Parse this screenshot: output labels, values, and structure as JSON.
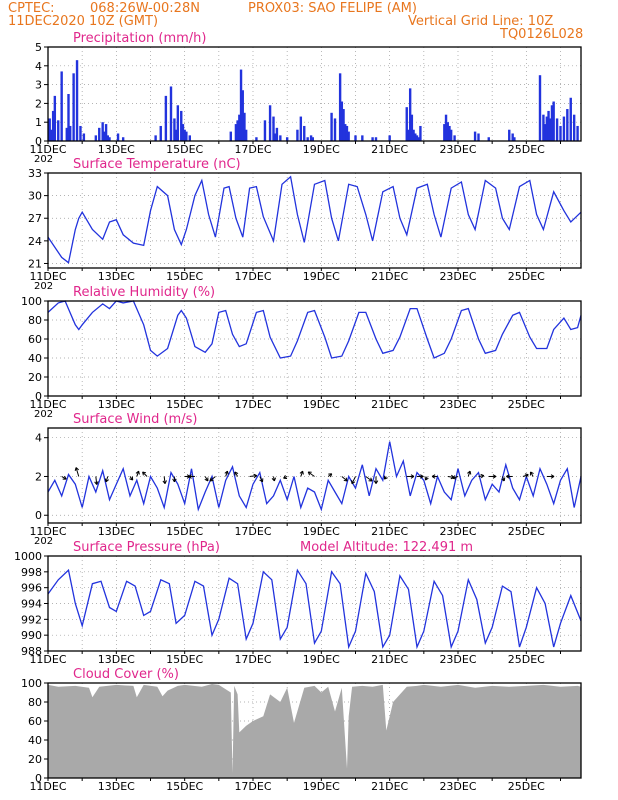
{
  "header": {
    "source": "CPTEC:",
    "coords": "068:26W-00:28N",
    "station": "PROX03: SAO FELIPE (AM)",
    "datetime": "11DEC2020 10Z (GMT)",
    "grid_note": "Vertical Grid Line: 10Z",
    "code": "TQ0126L028"
  },
  "colors": {
    "header": "#e8761e",
    "title": "#e0278c",
    "series": "#2233dd",
    "cloud": "#a9a9a9",
    "grid": "#9a9a9a"
  },
  "x_axis": {
    "range_days": [
      0,
      15.6
    ],
    "tick_labels": [
      {
        "day": 0,
        "label": "11DEC"
      },
      {
        "day": 2,
        "label": "13DEC"
      },
      {
        "day": 4,
        "label": "15DEC"
      },
      {
        "day": 6,
        "label": "17DEC"
      },
      {
        "day": 8,
        "label": "19DEC"
      },
      {
        "day": 10,
        "label": "21DEC"
      },
      {
        "day": 12,
        "label": "23DEC"
      },
      {
        "day": 14,
        "label": "25DEC"
      }
    ],
    "year_stub": "202"
  },
  "chart_data": [
    {
      "id": "precip",
      "type": "bar",
      "title": "Precipitation (mm/h)",
      "ylim": [
        0,
        5
      ],
      "yticks": [
        "0",
        "1",
        "2",
        "3",
        "4",
        "5"
      ],
      "year_stub": "202",
      "x": [
        0.05,
        0.1,
        0.15,
        0.2,
        0.3,
        0.4,
        0.55,
        0.6,
        0.65,
        0.75,
        0.85,
        0.95,
        1.05,
        1.4,
        1.5,
        1.6,
        1.65,
        1.7,
        1.75,
        1.8,
        2.05,
        2.2,
        3.15,
        3.3,
        3.45,
        3.6,
        3.7,
        3.75,
        3.8,
        3.9,
        3.95,
        4.0,
        4.05,
        4.15,
        5.35,
        5.5,
        5.55,
        5.6,
        5.65,
        5.7,
        5.75,
        5.8,
        6.1,
        6.35,
        6.5,
        6.6,
        6.65,
        6.7,
        6.8,
        7.0,
        7.3,
        7.4,
        7.5,
        7.6,
        7.7,
        7.75,
        8.3,
        8.4,
        8.55,
        8.6,
        8.65,
        8.7,
        8.75,
        8.8,
        9.0,
        9.2,
        9.5,
        9.6,
        10.0,
        10.5,
        10.55,
        10.6,
        10.65,
        10.7,
        10.75,
        10.8,
        10.85,
        10.9,
        11.6,
        11.65,
        11.7,
        11.75,
        11.8,
        11.9,
        12.5,
        12.6,
        12.9,
        13.5,
        13.6,
        13.65,
        14.4,
        14.5,
        14.55,
        14.6,
        14.65,
        14.7,
        14.75,
        14.8,
        14.9,
        15.0,
        15.1,
        15.2,
        15.3,
        15.4,
        15.5
      ],
      "values": [
        1.2,
        0.6,
        1.6,
        2.4,
        1.1,
        3.7,
        0.7,
        2.5,
        0.8,
        3.6,
        4.3,
        0.8,
        0.4,
        0.3,
        0.7,
        1.0,
        0.5,
        0.9,
        0.3,
        0.2,
        0.4,
        0.2,
        0.3,
        0.8,
        2.4,
        2.9,
        1.2,
        0.6,
        1.9,
        1.6,
        0.9,
        0.6,
        0.5,
        0.3,
        0.5,
        0.9,
        1.1,
        1.4,
        3.8,
        2.7,
        1.5,
        0.6,
        0.2,
        1.1,
        1.9,
        1.3,
        0.4,
        0.7,
        0.3,
        0.2,
        0.6,
        1.3,
        0.8,
        0.2,
        0.3,
        0.2,
        1.5,
        1.2,
        3.6,
        2.1,
        1.7,
        0.9,
        0.8,
        0.5,
        0.3,
        0.3,
        0.2,
        0.2,
        0.3,
        1.8,
        0.6,
        2.8,
        1.4,
        0.6,
        0.4,
        0.3,
        0.2,
        0.8,
        0.9,
        1.4,
        1.0,
        0.8,
        0.6,
        0.3,
        0.5,
        0.4,
        0.2,
        0.6,
        0.4,
        0.2,
        3.5,
        1.4,
        0.9,
        1.3,
        1.6,
        1.2,
        1.9,
        2.1,
        1.2,
        0.8,
        1.3,
        1.7,
        2.3,
        1.4,
        0.8
      ]
    },
    {
      "id": "temp",
      "type": "line",
      "title": "Surface Temperature (nC)",
      "ylim": [
        20.4,
        33
      ],
      "yticks": [
        "21",
        "24",
        "27",
        "30",
        "33"
      ],
      "year_stub": "202",
      "x": [
        0,
        0.4,
        0.6,
        0.8,
        0.9,
        1.0,
        1.3,
        1.6,
        1.8,
        2.0,
        2.2,
        2.5,
        2.8,
        3.0,
        3.2,
        3.5,
        3.7,
        3.9,
        4.05,
        4.3,
        4.5,
        4.7,
        4.9,
        5.15,
        5.3,
        5.5,
        5.7,
        5.9,
        6.1,
        6.3,
        6.6,
        6.85,
        7.1,
        7.3,
        7.5,
        7.8,
        8.1,
        8.3,
        8.5,
        8.8,
        9.05,
        9.3,
        9.5,
        9.8,
        10.1,
        10.3,
        10.5,
        10.8,
        11.1,
        11.3,
        11.5,
        11.8,
        12.1,
        12.3,
        12.5,
        12.8,
        13.1,
        13.3,
        13.5,
        13.8,
        14.1,
        14.3,
        14.5,
        14.8,
        15.1,
        15.3,
        15.6
      ],
      "values": [
        24.5,
        21.8,
        21.1,
        25.5,
        27.0,
        27.8,
        25.5,
        24.2,
        26.5,
        26.8,
        24.8,
        23.7,
        23.4,
        28.0,
        31.2,
        30.0,
        25.5,
        23.5,
        25.5,
        30.0,
        32.0,
        27.5,
        24.5,
        31.0,
        31.2,
        27.0,
        24.5,
        31.0,
        31.2,
        27.2,
        24.0,
        31.5,
        32.5,
        27.5,
        23.8,
        31.5,
        32.0,
        27.0,
        24.0,
        31.5,
        31.2,
        27.5,
        24.0,
        30.5,
        31.2,
        27.0,
        24.8,
        31.0,
        31.5,
        27.5,
        24.5,
        31.0,
        31.8,
        27.5,
        25.5,
        32.0,
        31.0,
        27.0,
        25.5,
        31.2,
        32.0,
        27.5,
        25.5,
        30.5,
        28.0,
        26.5,
        27.8
      ]
    },
    {
      "id": "rh",
      "type": "line",
      "title": "Relative Humidity (%)",
      "ylim": [
        0,
        100
      ],
      "yticks": [
        "0",
        "20",
        "40",
        "60",
        "80",
        "100"
      ],
      "year_stub": "202",
      "x": [
        0,
        0.3,
        0.5,
        0.8,
        0.9,
        1.0,
        1.3,
        1.6,
        1.8,
        2.0,
        2.2,
        2.5,
        2.8,
        3.0,
        3.2,
        3.5,
        3.8,
        3.9,
        4.05,
        4.3,
        4.6,
        4.8,
        5.0,
        5.2,
        5.4,
        5.6,
        5.8,
        6.1,
        6.3,
        6.5,
        6.8,
        7.1,
        7.3,
        7.6,
        7.8,
        8.1,
        8.3,
        8.6,
        8.8,
        9.1,
        9.3,
        9.6,
        9.8,
        10.1,
        10.3,
        10.6,
        10.8,
        11.1,
        11.3,
        11.6,
        11.8,
        12.1,
        12.3,
        12.6,
        12.8,
        13.1,
        13.3,
        13.6,
        13.8,
        14.1,
        14.3,
        14.6,
        14.8,
        15.1,
        15.3,
        15.5,
        15.6
      ],
      "values": [
        88,
        98,
        100,
        75,
        70,
        75,
        88,
        97,
        92,
        100,
        98,
        100,
        75,
        48,
        42,
        50,
        85,
        90,
        82,
        52,
        46,
        55,
        88,
        90,
        65,
        52,
        55,
        88,
        90,
        62,
        40,
        42,
        58,
        88,
        90,
        62,
        40,
        42,
        58,
        88,
        88,
        60,
        45,
        48,
        62,
        92,
        92,
        60,
        40,
        45,
        60,
        90,
        92,
        60,
        45,
        48,
        65,
        85,
        88,
        62,
        50,
        50,
        70,
        82,
        70,
        72,
        85
      ]
    },
    {
      "id": "wind",
      "type": "line",
      "title": "Surface Wind (m/s)",
      "ylim": [
        -0.4,
        4.5
      ],
      "yticks": [
        "0",
        "2",
        "4"
      ],
      "year_stub": "202",
      "x": [
        0,
        0.2,
        0.4,
        0.6,
        0.8,
        1.0,
        1.2,
        1.4,
        1.6,
        1.8,
        2.0,
        2.2,
        2.4,
        2.6,
        2.8,
        3.0,
        3.2,
        3.4,
        3.6,
        3.8,
        4.0,
        4.2,
        4.4,
        4.6,
        4.8,
        5.0,
        5.2,
        5.4,
        5.6,
        5.8,
        6.0,
        6.2,
        6.4,
        6.6,
        6.8,
        7.0,
        7.2,
        7.4,
        7.6,
        7.8,
        8.0,
        8.2,
        8.4,
        8.6,
        8.8,
        9.0,
        9.2,
        9.4,
        9.6,
        9.8,
        10.0,
        10.2,
        10.4,
        10.6,
        10.8,
        11.0,
        11.2,
        11.4,
        11.6,
        11.8,
        12.0,
        12.2,
        12.4,
        12.6,
        12.8,
        13.0,
        13.2,
        13.4,
        13.6,
        13.8,
        14.0,
        14.2,
        14.4,
        14.6,
        14.8,
        15.0,
        15.2,
        15.4,
        15.6
      ],
      "values": [
        1.2,
        1.8,
        1.0,
        2.1,
        1.6,
        0.4,
        2.0,
        1.2,
        2.3,
        0.8,
        1.6,
        2.4,
        1.0,
        1.8,
        0.6,
        2.0,
        1.4,
        0.4,
        2.2,
        1.6,
        0.6,
        2.4,
        0.3,
        1.2,
        2.0,
        0.4,
        1.8,
        2.5,
        1.0,
        0.4,
        1.6,
        2.2,
        0.6,
        1.0,
        1.8,
        0.8,
        2.0,
        0.4,
        1.4,
        1.2,
        0.3,
        1.8,
        1.2,
        0.6,
        2.0,
        1.4,
        2.6,
        1.0,
        2.4,
        1.8,
        3.8,
        2.0,
        2.8,
        1.0,
        2.2,
        1.8,
        0.6,
        2.0,
        1.2,
        0.8,
        2.4,
        1.0,
        1.8,
        2.2,
        0.8,
        1.6,
        1.2,
        2.6,
        1.4,
        0.8,
        2.0,
        1.0,
        2.4,
        1.6,
        0.6,
        1.8,
        2.4,
        0.4,
        2.0
      ]
    },
    {
      "id": "pres",
      "type": "line",
      "title": "Surface Pressure (hPa)",
      "annotation": "Model Altitude: 122.491 m",
      "ylim": [
        988,
        1000
      ],
      "yticks": [
        "988",
        "990",
        "992",
        "994",
        "996",
        "998",
        "1000"
      ],
      "year_stub": "",
      "x": [
        0,
        0.3,
        0.6,
        0.8,
        1.0,
        1.3,
        1.55,
        1.8,
        2.0,
        2.3,
        2.55,
        2.8,
        3.0,
        3.3,
        3.55,
        3.75,
        4.0,
        4.3,
        4.55,
        4.8,
        5.0,
        5.3,
        5.55,
        5.8,
        6.0,
        6.3,
        6.55,
        6.8,
        7.0,
        7.3,
        7.55,
        7.8,
        8.0,
        8.3,
        8.55,
        8.8,
        9.0,
        9.3,
        9.55,
        9.8,
        10.0,
        10.3,
        10.55,
        10.8,
        11.0,
        11.3,
        11.55,
        11.8,
        12.0,
        12.3,
        12.55,
        12.8,
        13.0,
        13.3,
        13.55,
        13.8,
        14.0,
        14.3,
        14.55,
        14.8,
        15.0,
        15.3,
        15.6
      ],
      "values": [
        995.2,
        997.0,
        998.2,
        994.0,
        991.2,
        996.5,
        996.8,
        993.5,
        993.0,
        996.8,
        996.2,
        992.5,
        993.0,
        997.0,
        996.5,
        991.5,
        992.5,
        996.8,
        996.2,
        990.0,
        992.0,
        997.2,
        996.5,
        989.5,
        991.5,
        998.0,
        997.0,
        989.5,
        991.0,
        998.2,
        996.5,
        989.0,
        990.5,
        998.0,
        996.5,
        988.5,
        990.5,
        997.8,
        995.5,
        988.5,
        990.0,
        997.5,
        995.8,
        988.5,
        990.5,
        996.8,
        995.0,
        988.5,
        990.5,
        997.0,
        994.5,
        989.0,
        991.0,
        996.2,
        995.5,
        988.5,
        991.0,
        996.0,
        994.0,
        988.5,
        991.5,
        995.0,
        991.8
      ]
    },
    {
      "id": "cloud",
      "type": "area",
      "title": "Cloud Cover (%)",
      "ylim": [
        0,
        100
      ],
      "yticks": [
        "0",
        "20",
        "40",
        "60",
        "80",
        "100"
      ],
      "year_stub": "",
      "x": [
        0,
        0.3,
        0.8,
        1.2,
        1.3,
        1.5,
        2.0,
        2.5,
        2.6,
        2.8,
        3.2,
        3.35,
        3.5,
        3.8,
        4.0,
        4.5,
        4.8,
        5.0,
        5.35,
        5.4,
        5.45,
        5.55,
        5.6,
        5.8,
        6.0,
        6.3,
        6.5,
        6.8,
        7.0,
        7.2,
        7.5,
        7.8,
        8.0,
        8.2,
        8.4,
        8.6,
        8.75,
        8.8,
        8.9,
        9.2,
        9.5,
        9.8,
        9.9,
        10.1,
        10.5,
        10.8,
        11.0,
        11.5,
        12.0,
        12.5,
        13.0,
        13.5,
        14.0,
        14.5,
        15.0,
        15.5,
        15.6
      ],
      "values": [
        98,
        96,
        97,
        95,
        85,
        96,
        98,
        97,
        85,
        98,
        96,
        86,
        92,
        97,
        98,
        96,
        99,
        98,
        90,
        5,
        97,
        88,
        48,
        55,
        60,
        65,
        88,
        80,
        95,
        58,
        95,
        97,
        90,
        96,
        70,
        95,
        10,
        65,
        96,
        97,
        96,
        98,
        50,
        80,
        96,
        97,
        98,
        96,
        98,
        95,
        97,
        96,
        97,
        98,
        96,
        97,
        96
      ]
    }
  ],
  "wind_vectors": {
    "x": [
      0.4,
      0.9,
      1.4,
      1.75,
      2.4,
      2.6,
      2.9,
      3.4,
      3.7,
      4.0,
      4.3,
      4.6,
      4.9,
      5.2,
      5.55,
      5.9,
      6.2,
      6.6,
      7.0,
      7.4,
      7.8,
      8.2,
      8.6,
      9.0,
      9.3,
      9.6,
      9.9,
      10.5,
      10.8,
      11.1,
      11.4,
      11.7,
      12.0,
      12.3,
      12.6,
      12.9,
      13.3,
      13.6,
      13.9,
      14.2,
      14.6
    ],
    "u": [
      0.5,
      -0.3,
      0.1,
      -0.2,
      0.3,
      0.2,
      -0.5,
      0.1,
      0.0,
      0.6,
      -0.7,
      0.3,
      -0.6,
      0.2,
      -0.3,
      0.8,
      0.3,
      0.1,
      -0.4,
      0.2,
      -0.7,
      0.4,
      0.6,
      -0.4,
      0.7,
      0.0,
      -0.2,
      0.8,
      0.7,
      -0.2,
      -0.6,
      0.7,
      -0.6,
      0.2,
      0.6,
      0.8,
      0.2,
      -0.7,
      0.6,
      -0.3,
      0.8
    ],
    "v": [
      -0.3,
      1.0,
      -0.9,
      -0.6,
      -0.4,
      0.6,
      0.5,
      -0.8,
      -0.6,
      0.0,
      0.0,
      -0.5,
      -0.5,
      0.6,
      0.5,
      0.1,
      -0.6,
      -0.5,
      -0.2,
      0.6,
      0.5,
      0.3,
      -0.5,
      -0.8,
      -0.5,
      -0.8,
      -0.3,
      0.0,
      0.0,
      -0.4,
      0.0,
      -0.1,
      -0.2,
      0.6,
      0.1,
      0.0,
      -0.5,
      0.0,
      0.2,
      0.5,
      0.0
    ]
  }
}
